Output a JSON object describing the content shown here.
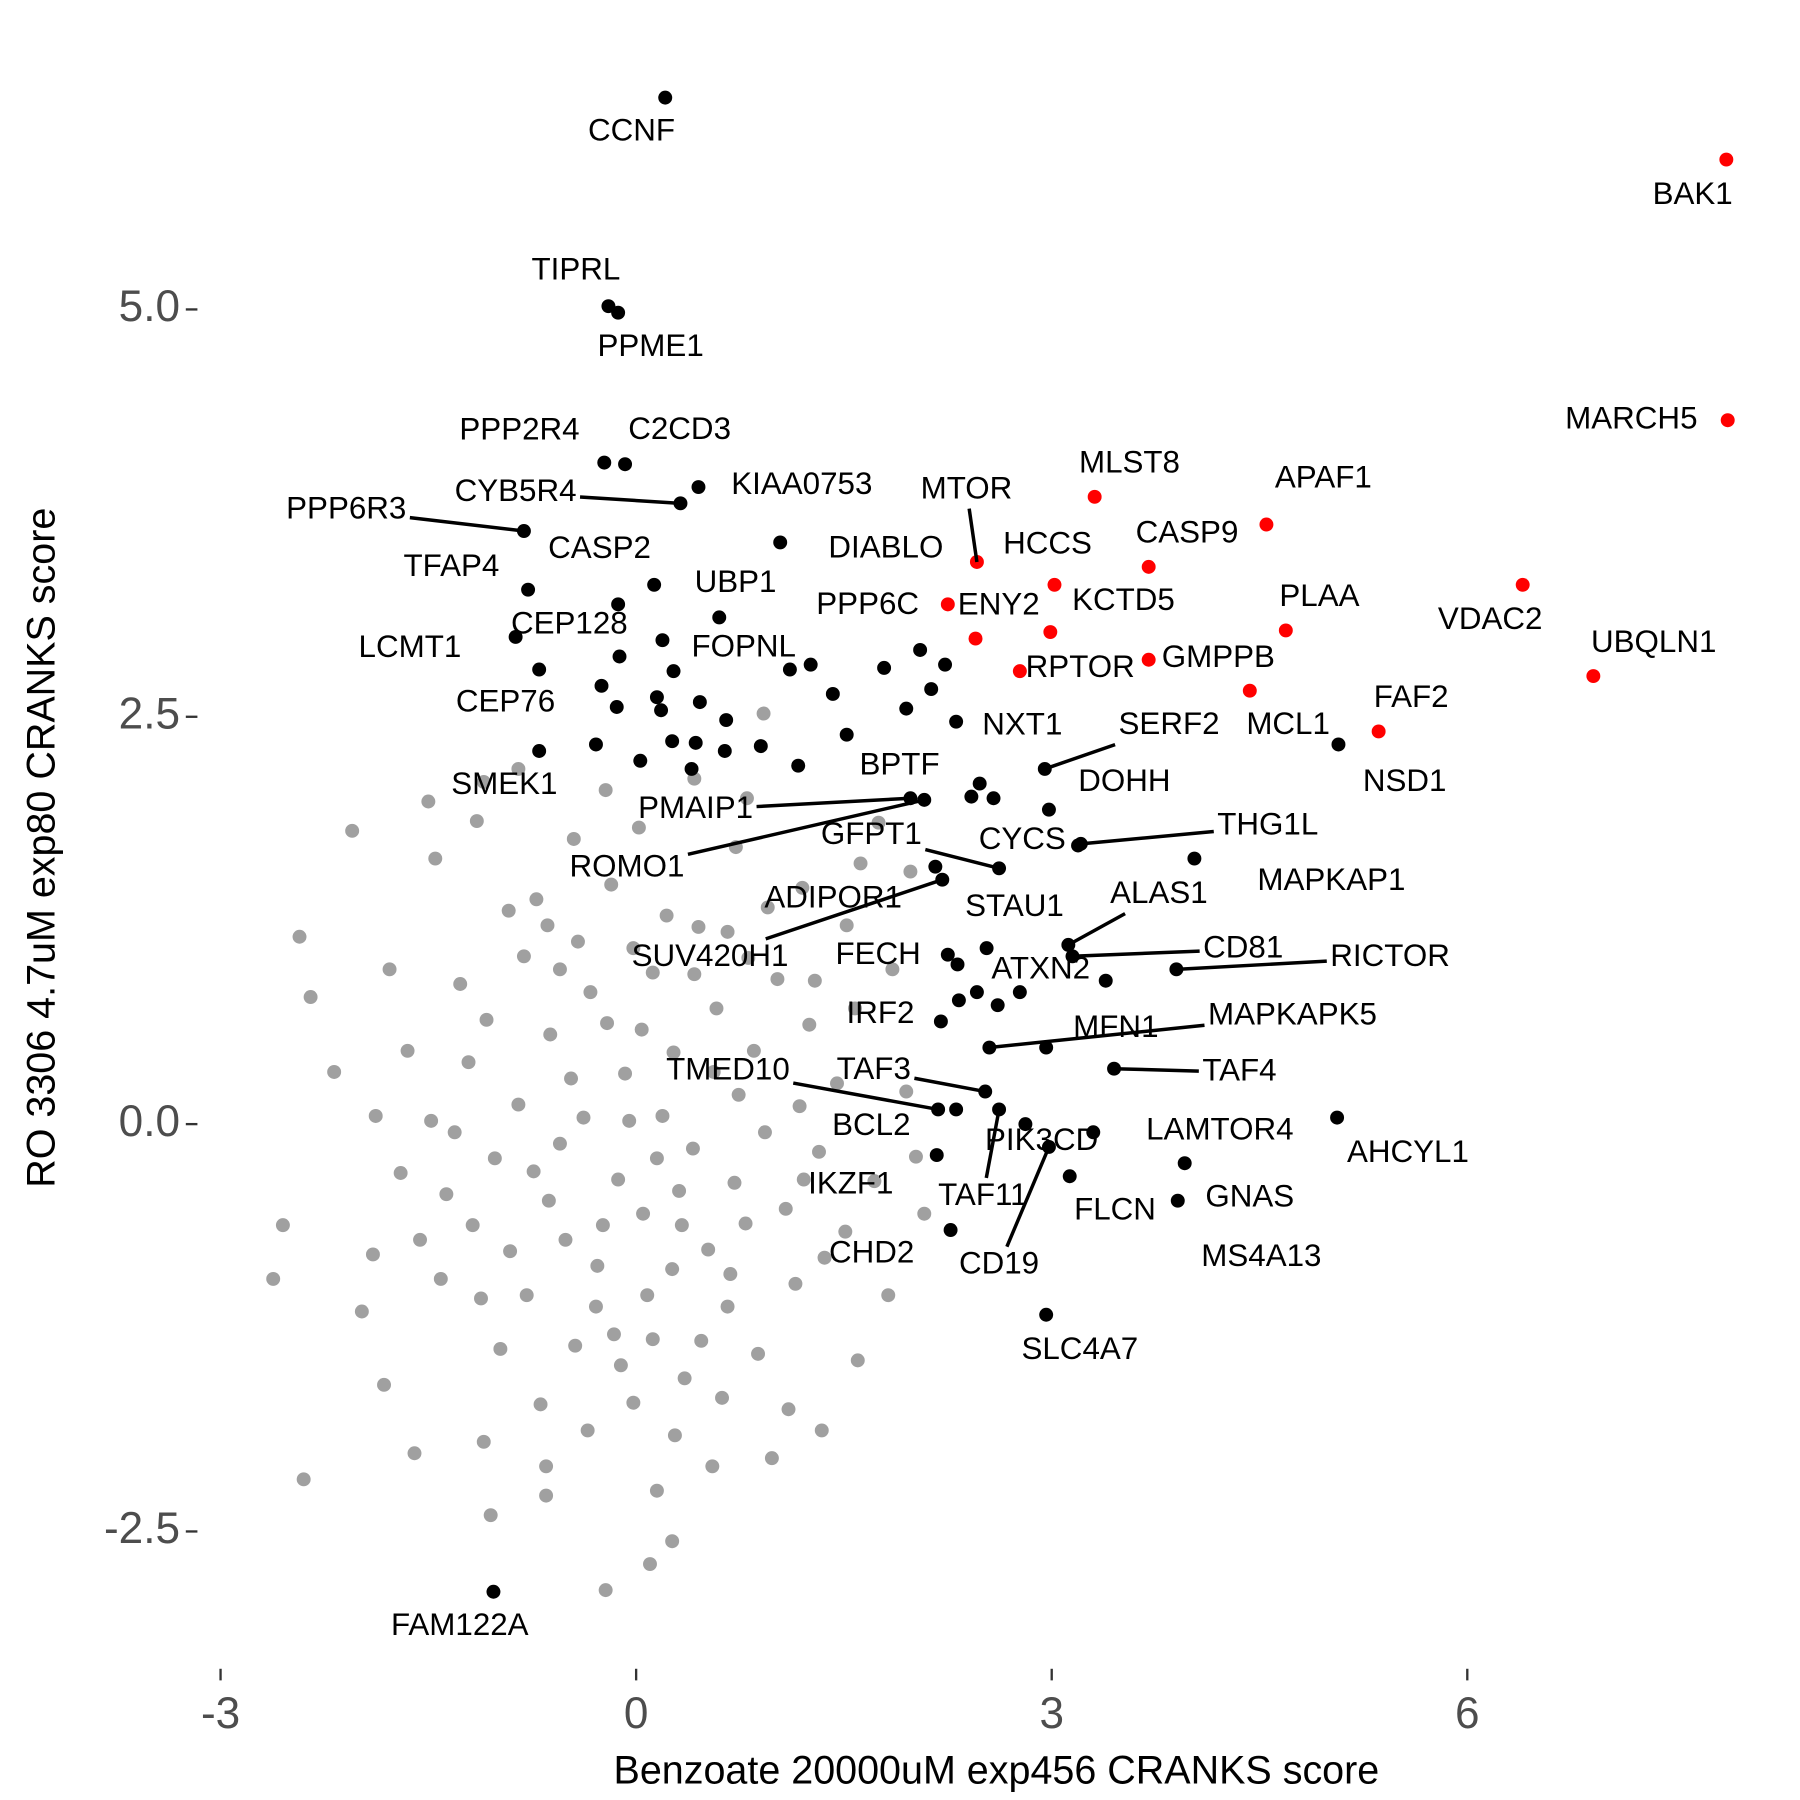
{
  "chart_data": {
    "type": "scatter",
    "xlabel": "Benzoate 20000uM exp456 CRANKS score",
    "ylabel": "RO 3306 4.7uM exp80 CRANKS score",
    "xlim": [
      -3.1,
      8.1
    ],
    "xticks": [
      -3,
      0,
      3,
      6
    ],
    "ylim": [
      -3.3,
      6.5
    ],
    "yticks": [
      {
        "value": -2.5,
        "label": "-2.5"
      },
      {
        "value": 0,
        "label": "0.0"
      },
      2.5,
      {
        "value": 5,
        "label": "5.0"
      }
    ],
    "grid": false,
    "series": [
      {
        "color": "#a0a0a0",
        "x": [
          -0.05,
          0.31,
          -0.62,
          0.74,
          -0.28,
          0.12,
          -1.02,
          1.08,
          0.45,
          -0.81,
          -1.21,
          1.25,
          -0.44,
          0.66,
          -0.13,
          0.27,
          -0.55,
          0.93,
          -0.91,
          0.52,
          -0.33,
          0.08,
          1.32,
          -1.37,
          -0.72,
          0.81,
          -0.18,
          0.35,
          -1.12,
          1.15,
          -0.02,
          0.58,
          -0.47,
          0.19,
          -0.85,
          0.41,
          -0.24,
          0.71,
          -0.63,
          0.04,
          -1.48,
          1.45,
          -1.27,
          1.02,
          -0.98,
          0.88,
          -0.42,
          0.22,
          -0.16,
          0.47,
          -1.56,
          1.51,
          -0.69,
          0.62,
          -1.65,
          1.58,
          -0.35,
          0.28,
          -0.92,
          0.95,
          -0.08,
          0.15,
          -0.38,
          0.56,
          -0.74,
          0.33,
          -0.21,
          0.85,
          -1.08,
          1.18,
          -0.55,
          0.68,
          -1.18,
          1.21,
          -0.02,
          0.05,
          -0.79,
          0.79,
          -1.31,
          1.36,
          -0.51,
          0.42,
          -0.29,
          0.26,
          -1.41,
          1.29,
          -0.11,
          0.12,
          -0.64,
          0.66,
          -2.55,
          -2.4,
          -2.43,
          -2.35,
          -2.18,
          -1.98,
          -1.82,
          -1.78,
          -1.7,
          -1.6,
          -1.45,
          -1.15,
          -1.1,
          -0.65,
          -0.22,
          0.15,
          0.1,
          0.26,
          -0.22,
          -0.65,
          0.8,
          0.92,
          1.2,
          1.52,
          1.72,
          1.85,
          1.82,
          1.6,
          1.34,
          0.98,
          0.55,
          1.95,
          1.98,
          1.75,
          1.62,
          -2.05,
          -1.5,
          -1.05,
          -1.1,
          2.08,
          -0.85,
          0.42,
          0.72,
          -1.9,
          1.1,
          -2.62,
          -1.88,
          0.02,
          -0.45,
          2.02
        ],
        "y": [
          0.02,
          -0.41,
          0.55,
          0.18,
          -0.87,
          0.93,
          -0.21,
          -0.52,
          1.21,
          1.03,
          0.38,
          0.61,
          -1.36,
          -1.12,
          -0.34,
          0.44,
          -0.12,
          -0.05,
          -0.78,
          -0.77,
          0.81,
          -1.05,
          -0.17,
          -0.43,
          1.38,
          1.02,
          1.47,
          -1.56,
          -1.07,
          -0.98,
          -1.71,
          0.71,
          0.28,
          0.05,
          0.12,
          -0.15,
          -0.62,
          -0.36,
          -0.47,
          0.58,
          0.02,
          0.25,
          0.86,
          0.89,
          -1.38,
          -1.41,
          1.12,
          1.28,
          -1.29,
          -1.33,
          -0.71,
          -0.66,
          -1.72,
          -1.68,
          0.45,
          0.71,
          -1.88,
          -1.91,
          1.31,
          1.33,
          0.31,
          -0.21,
          0.04,
          0.32,
          -0.29,
          -0.62,
          0.62,
          0.45,
          0.64,
          0.11,
          0.95,
          -0.92,
          -0.62,
          -0.34,
          1.08,
          -0.55,
          -1.05,
          -0.61,
          -0.05,
          -0.82,
          -0.71,
          0.92,
          -1.12,
          -0.89,
          -0.95,
          0.88,
          -1.48,
          -1.32,
          1.22,
          1.18,
          -0.62,
          -2.18,
          1.15,
          0.78,
          0.32,
          -1.15,
          -1.6,
          0.95,
          -0.3,
          -2.02,
          1.63,
          1.86,
          -1.95,
          -2.28,
          2.05,
          -2.25,
          -2.7,
          -2.56,
          -2.86,
          -2.1,
          2.0,
          2.52,
          1.45,
          1.22,
          -0.35,
          0.95,
          -1.05,
          -1.45,
          -1.88,
          -2.05,
          -2.1,
          0.2,
          1.55,
          1.85,
          1.6,
          1.8,
          1.98,
          -2.4,
          2.1,
          -0.55,
          2.18,
          2.12,
          1.7,
          -0.8,
          -1.75,
          -0.95,
          0.05,
          1.82,
          1.75,
          -0.2
        ]
      },
      {
        "color": "#000000",
        "x": [
          0.21,
          -0.2,
          -0.13,
          -0.23,
          -0.08,
          0.45,
          0.32,
          -0.81,
          1.04,
          -0.78,
          0.13,
          -0.13,
          0.6,
          -0.87,
          0.19,
          -0.7,
          -0.7,
          2.31,
          2.95,
          5.07,
          2.48,
          2.98,
          1.98,
          2.08,
          2.62,
          3.19,
          3.21,
          4.03,
          2.16,
          2.21,
          3.12,
          2.53,
          3.15,
          3.9,
          2.25,
          3.39,
          2.55,
          2.96,
          2.2,
          3.45,
          2.18,
          2.52,
          2.31,
          5.06,
          2.81,
          3.3,
          2.62,
          2.98,
          3.13,
          2.17,
          3.96,
          3.91,
          2.27,
          2.96,
          -1.03,
          -0.12,
          0.27,
          -0.25,
          -0.14,
          0.15,
          0.18,
          0.46,
          0.65,
          0.26,
          0.43,
          -0.29,
          0.03,
          0.4,
          0.64,
          0.9,
          1.17,
          2.05,
          2.23,
          1.79,
          1.11,
          1.26,
          1.42,
          1.95,
          2.13,
          1.52,
          2.42,
          2.58,
          2.46,
          2.32,
          2.77,
          2.33,
          2.61
        ],
        "y": [
          6.3,
          5.02,
          4.98,
          4.06,
          4.05,
          3.91,
          3.81,
          3.64,
          3.57,
          3.28,
          3.31,
          3.19,
          3.11,
          2.99,
          2.97,
          2.79,
          2.29,
          2.47,
          2.18,
          2.33,
          2.09,
          1.93,
          2.0,
          1.99,
          1.57,
          1.71,
          1.72,
          1.63,
          1.58,
          1.5,
          1.1,
          1.08,
          1.03,
          0.95,
          1.04,
          0.88,
          0.47,
          0.47,
          0.63,
          0.34,
          0.09,
          0.2,
          0.09,
          0.04,
          0.0,
          -0.05,
          0.09,
          -0.14,
          -0.32,
          -0.19,
          -0.24,
          -0.47,
          -0.65,
          -1.17,
          -2.87,
          2.87,
          2.78,
          2.69,
          2.56,
          2.62,
          2.54,
          2.59,
          2.48,
          2.35,
          2.34,
          2.33,
          2.23,
          2.18,
          2.29,
          2.32,
          2.2,
          2.91,
          2.82,
          2.8,
          2.79,
          2.82,
          2.64,
          2.55,
          2.67,
          2.39,
          2.01,
          2.0,
          0.81,
          0.98,
          0.81,
          0.76,
          0.73
        ],
        "labels": [
          "CCNF",
          "TIPRL",
          "PPME1",
          "PPP2R4",
          "C2CD3",
          "KIAA0753",
          "CYB5R4",
          "PPP6R3",
          "DIABLO",
          "TFAP4",
          "CASP2",
          "CEP128",
          "UBP1",
          "LCMT1",
          "FOPNL",
          "CEP76",
          "SMEK1",
          "NXT1",
          "SERF2",
          "NSD1",
          "BPTF",
          "DOHH",
          "PMAIP1",
          "ROMO1",
          "GFPT1",
          "CYCS",
          "THG1L",
          "MAPKAP1",
          "ADIPOR1",
          "SUV420H1",
          "ALAS1",
          "STAU1",
          "CD81",
          "RICTOR",
          "FECH",
          "ATXN2",
          "MAPKAPK5",
          "MFN1",
          "IRF2",
          "TAF4",
          "TMED10",
          "TAF3",
          "BCL2",
          "AHCYL1",
          "PIK3CD",
          "LAMTOR4",
          "TAF11",
          "CD19",
          "FLCN",
          "IKZF1",
          "GNAS",
          "MS4A13",
          "CHD2",
          "SLC4A7",
          "FAM122A",
          null,
          null,
          null,
          null,
          null,
          null,
          null,
          null,
          null,
          null,
          null,
          null,
          null,
          null,
          null,
          null,
          null,
          null,
          null,
          null,
          null,
          null,
          null,
          null,
          null,
          null,
          null,
          null,
          null,
          null,
          null,
          null
        ]
      },
      {
        "color": "#ff0000",
        "x": [
          7.87,
          7.88,
          3.31,
          4.55,
          2.46,
          3.02,
          3.7,
          6.4,
          2.25,
          2.45,
          2.99,
          4.69,
          3.7,
          2.77,
          6.91,
          4.43,
          5.36
        ],
        "y": [
          5.92,
          4.32,
          3.85,
          3.68,
          3.45,
          3.31,
          3.42,
          3.31,
          3.19,
          2.98,
          3.02,
          3.03,
          2.85,
          2.78,
          2.75,
          2.66,
          2.41
        ],
        "labels": [
          "BAK1",
          "MARCH5",
          "MLST8",
          "APAF1",
          "MTOR",
          "HCCS",
          "CASP9",
          "VDAC2",
          "PPP6C",
          "ENY2",
          "KCTD5",
          "PLAA",
          "GMPPB",
          "RPTOR",
          "UBQLN1",
          "MCL1",
          "FAF2"
        ]
      }
    ]
  }
}
